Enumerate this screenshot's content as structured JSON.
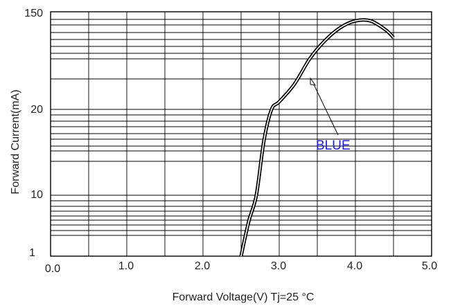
{
  "chart_data": {
    "type": "line",
    "title": "",
    "xlabel": "Forward Voltage(V) Tj=25 °C",
    "ylabel": "Forward Current(mA)",
    "xlim": [
      0,
      5
    ],
    "x_ticks": [
      "0.0",
      "1.0",
      "2.0",
      "3.0",
      "4.0",
      "5.0"
    ],
    "y_ticks": [
      "1",
      "10",
      "20",
      "150"
    ],
    "grid": true,
    "series": [
      {
        "name": "BLUE",
        "color": "#1f1fd6",
        "points": [
          {
            "x": 2.5,
            "y": 1
          },
          {
            "x": 2.6,
            "y": 5
          },
          {
            "x": 2.7,
            "y": 10
          },
          {
            "x": 2.8,
            "y": 17
          },
          {
            "x": 2.9,
            "y": 20
          },
          {
            "x": 3.0,
            "y": 26
          },
          {
            "x": 3.2,
            "y": 40
          },
          {
            "x": 3.4,
            "y": 60
          },
          {
            "x": 3.6,
            "y": 90
          },
          {
            "x": 3.8,
            "y": 115
          },
          {
            "x": 4.0,
            "y": 130
          },
          {
            "x": 4.2,
            "y": 130
          },
          {
            "x": 4.4,
            "y": 110
          },
          {
            "x": 4.5,
            "y": 95
          }
        ]
      }
    ]
  }
}
